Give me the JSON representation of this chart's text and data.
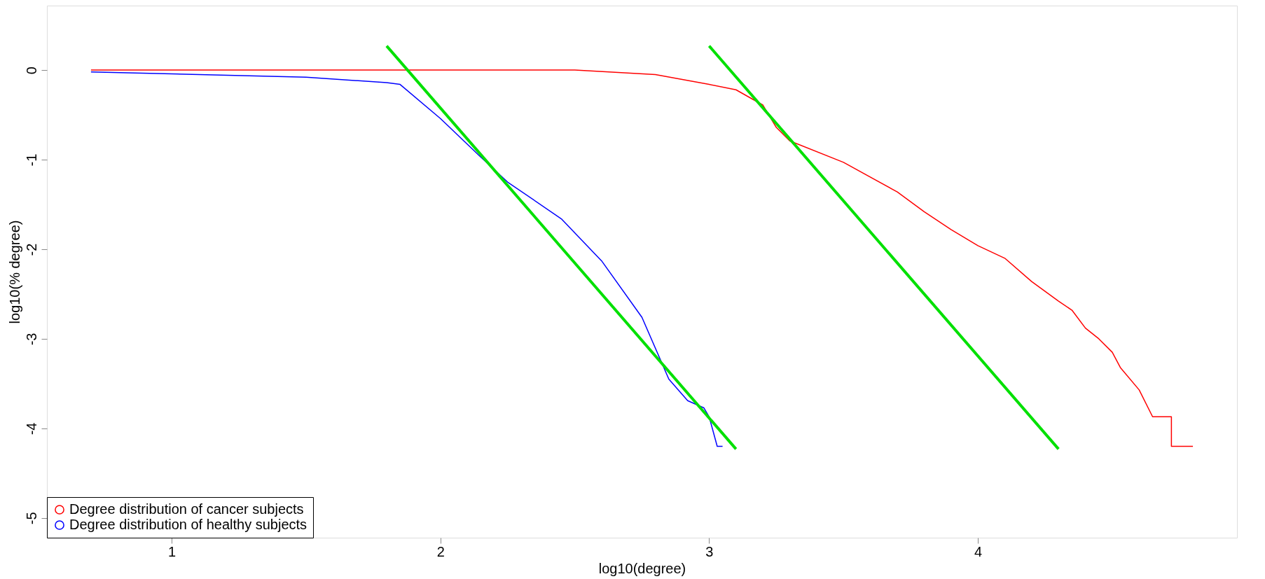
{
  "chart_data": {
    "type": "line",
    "xlabel": "log10(degree)",
    "ylabel": "log10(% degree)",
    "xlim": [
      0.536,
      4.964
    ],
    "ylim": [
      -5.22,
      0.72
    ],
    "xticks": [
      1,
      2,
      3,
      4
    ],
    "yticks": [
      0,
      -1,
      -2,
      -3,
      -4,
      -5
    ],
    "grid": false,
    "legend": "bottom left",
    "series": [
      {
        "name": "Degree distribution of cancer subjects",
        "color": "#ff0000",
        "x": [
          0.7,
          2.5,
          2.8,
          3.0,
          3.1,
          3.2,
          3.25,
          3.3,
          3.5,
          3.7,
          3.8,
          3.9,
          4.0,
          4.1,
          4.2,
          4.3,
          4.35,
          4.4,
          4.45,
          4.5,
          4.53,
          4.6,
          4.65,
          4.72,
          4.72,
          4.8
        ],
        "values": [
          0,
          0,
          -0.05,
          -0.16,
          -0.22,
          -0.39,
          -0.64,
          -0.79,
          -1.03,
          -1.36,
          -1.58,
          -1.78,
          -1.96,
          -2.1,
          -2.36,
          -2.58,
          -2.68,
          -2.88,
          -3.0,
          -3.15,
          -3.32,
          -3.57,
          -3.87,
          -3.87,
          -4.2,
          -4.2
        ]
      },
      {
        "name": "Degree distribution of healthy subjects",
        "color": "#0000ff",
        "x": [
          0.7,
          1.5,
          1.8,
          1.85,
          2.0,
          2.15,
          2.25,
          2.45,
          2.6,
          2.75,
          2.85,
          2.92,
          2.98,
          3.0,
          3.03,
          3.05
        ],
        "values": [
          -0.02,
          -0.08,
          -0.14,
          -0.16,
          -0.54,
          -0.97,
          -1.25,
          -1.66,
          -2.13,
          -2.76,
          -3.45,
          -3.69,
          -3.77,
          -3.87,
          -4.2,
          -4.2
        ]
      },
      {
        "color": "#00e000",
        "x": [
          1.8,
          3.1
        ],
        "values": [
          0.27,
          -4.23
        ]
      },
      {
        "color": "#00e000",
        "x": [
          3.0,
          4.3
        ],
        "values": [
          0.27,
          -4.23
        ]
      }
    ]
  }
}
